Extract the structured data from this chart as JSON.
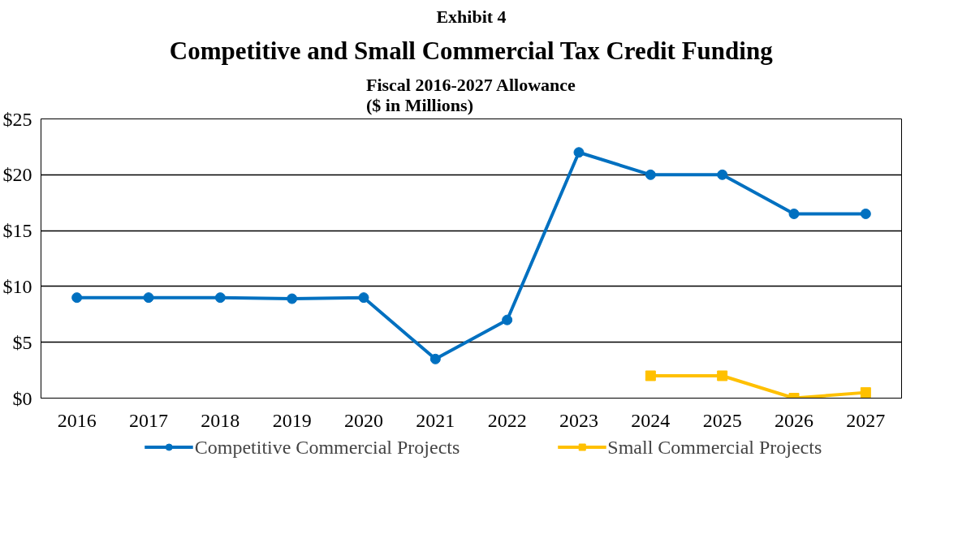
{
  "chart_data": {
    "type": "line",
    "title": "Competitive and Small Commercial Tax Credit Funding",
    "subtitle": "Fiscal 2016-2027 Allowance\n($ in Millions)",
    "annotations": [
      "Exhibit 4"
    ],
    "categories": [
      "2016",
      "2017",
      "2018",
      "2019",
      "2020",
      "2021",
      "2022",
      "2023",
      "2024",
      "2025",
      "2026",
      "2027"
    ],
    "series": [
      {
        "name": "Competitive Commercial Projects",
        "color": "#0070c0",
        "marker": "circle",
        "values": [
          9,
          9,
          9,
          8.9,
          9,
          3.5,
          7,
          22,
          20,
          20,
          16.5,
          16.5
        ]
      },
      {
        "name": "Small Commercial Projects",
        "color": "#ffc000",
        "marker": "square",
        "values": [
          null,
          null,
          null,
          null,
          null,
          null,
          null,
          null,
          2,
          2,
          0,
          0.5
        ]
      }
    ],
    "ylim": [
      0,
      25
    ],
    "yticks": [
      {
        "value": 0,
        "label": "$0"
      },
      {
        "value": 5,
        "label": "$5"
      },
      {
        "value": 10,
        "label": "$10"
      },
      {
        "value": 15,
        "label": "$15"
      },
      {
        "value": 20,
        "label": "$20"
      },
      {
        "value": 25,
        "label": "$25"
      }
    ],
    "grid": "y",
    "legend": "bottom",
    "line_style": "solid"
  }
}
